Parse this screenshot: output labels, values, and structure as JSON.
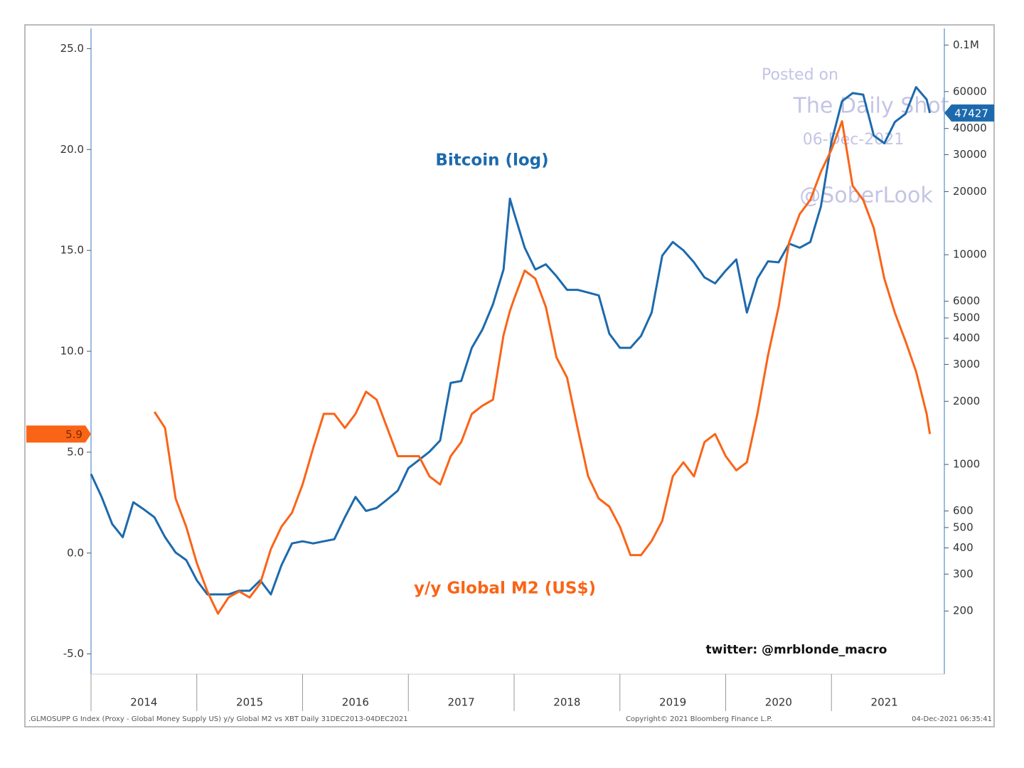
{
  "chart_data": {
    "type": "line",
    "x": [
      2014,
      2014.1,
      2014.2,
      2014.3,
      2014.4,
      2014.5,
      2014.6,
      2014.7,
      2014.8,
      2014.9,
      2015,
      2015.1,
      2015.2,
      2015.3,
      2015.4,
      2015.5,
      2015.6,
      2015.7,
      2015.8,
      2015.9,
      2016,
      2016.1,
      2016.2,
      2016.3,
      2016.4,
      2016.5,
      2016.6,
      2016.7,
      2016.8,
      2016.9,
      2017,
      2017.1,
      2017.2,
      2017.3,
      2017.4,
      2017.5,
      2017.6,
      2017.7,
      2017.8,
      2017.9,
      2017.96,
      2018,
      2018.1,
      2018.2,
      2018.3,
      2018.4,
      2018.5,
      2018.6,
      2018.7,
      2018.8,
      2018.9,
      2019,
      2019.1,
      2019.2,
      2019.3,
      2019.4,
      2019.5,
      2019.6,
      2019.7,
      2019.8,
      2019.9,
      2020,
      2020.1,
      2020.2,
      2020.3,
      2020.4,
      2020.5,
      2020.6,
      2020.7,
      2020.8,
      2020.9,
      2021,
      2021.1,
      2021.2,
      2021.3,
      2021.4,
      2021.5,
      2021.6,
      2021.7,
      2021.8,
      2021.9,
      2021.93
    ],
    "series": [
      {
        "name": "Bitcoin (log)",
        "color": "#1c6aad",
        "axis": "y2",
        "values": [
          900,
          700,
          520,
          450,
          660,
          610,
          560,
          450,
          380,
          350,
          280,
          240,
          240,
          240,
          250,
          250,
          280,
          240,
          330,
          420,
          430,
          420,
          430,
          440,
          560,
          700,
          600,
          620,
          680,
          750,
          960,
          1050,
          1150,
          1300,
          2450,
          2500,
          3600,
          4400,
          5800,
          8500,
          18500,
          15800,
          10800,
          8500,
          9000,
          7900,
          6800,
          6800,
          6600,
          6400,
          4200,
          3600,
          3600,
          4100,
          5300,
          9900,
          11500,
          10500,
          9200,
          7800,
          7300,
          8400,
          9500,
          5300,
          7700,
          9300,
          9200,
          11300,
          10800,
          11500,
          17000,
          34500,
          54000,
          59000,
          58000,
          37000,
          34000,
          43000,
          47000,
          63000,
          55000,
          47427
        ]
      },
      {
        "name": "y/y Global M2 (US$)",
        "color": "#fa6417",
        "values": [
          null,
          null,
          null,
          null,
          null,
          null,
          7.0,
          6.2,
          2.7,
          1.3,
          -0.5,
          -1.9,
          -3.0,
          -2.2,
          -1.9,
          -2.2,
          -1.5,
          0.2,
          1.3,
          2.0,
          3.4,
          5.2,
          6.9,
          6.9,
          6.2,
          6.9,
          8.0,
          7.6,
          6.2,
          4.8,
          4.8,
          4.8,
          3.8,
          3.4,
          4.8,
          5.5,
          6.9,
          7.3,
          7.6,
          10.8,
          12.0,
          12.6,
          14.0,
          13.6,
          12.2,
          9.7,
          8.7,
          6.2,
          3.8,
          2.7,
          2.3,
          1.3,
          -0.1,
          -0.1,
          0.6,
          1.6,
          3.8,
          4.5,
          3.8,
          5.5,
          5.9,
          4.8,
          4.1,
          4.5,
          6.9,
          9.8,
          12.2,
          15.4,
          16.8,
          17.5,
          18.9,
          20.0,
          21.4,
          18.2,
          17.5,
          16.1,
          13.6,
          11.9,
          10.5,
          9.0,
          6.9,
          5.9
        ]
      }
    ],
    "xlim": [
      2014,
      2022
    ],
    "xticks": [
      2014,
      2015,
      2016,
      2017,
      2018,
      2019,
      2020,
      2021
    ],
    "ylim": [
      -6,
      26
    ],
    "yticks": [
      {
        "value": -5,
        "label": "-5.0"
      },
      {
        "value": 0,
        "label": "0.0"
      },
      {
        "value": 5,
        "label": "5.0"
      },
      {
        "value": 10,
        "label": "10.0"
      },
      {
        "value": 15,
        "label": "15.0"
      },
      {
        "value": 20,
        "label": "20.0"
      },
      {
        "value": 25,
        "label": "25.0"
      }
    ],
    "y2lim": [
      100,
      120000
    ],
    "y2log": true,
    "y2ticks": [
      200,
      300,
      400,
      500,
      600,
      1000,
      2000,
      3000,
      4000,
      5000,
      6000,
      10000,
      20000,
      30000,
      40000,
      60000,
      {
        "value": 100000,
        "label": "0.1M"
      }
    ],
    "annotations": [
      "twitter: @mrblonde_macro",
      "Posted on",
      "The Daily Shot",
      "06-Dec-2021",
      "@SoberLook"
    ],
    "footer": [
      ".GLMOSUPP G Index (Proxy - Global Money Supply US) y/y Global M2 vs XBT  Daily 31DEC2013-04DEC2021",
      "Copyright© 2021 Bloomberg Finance L.P.",
      "04-Dec-2021 06:35:41"
    ]
  }
}
